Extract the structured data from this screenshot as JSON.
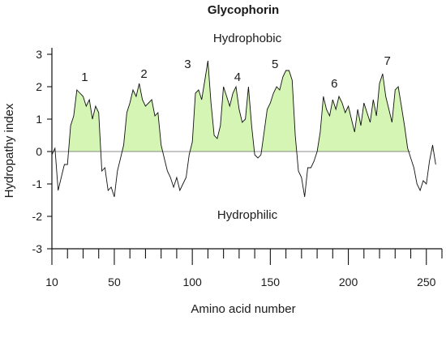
{
  "chart_data": {
    "type": "line",
    "title": "Glycophorin",
    "xlabel": "Amino acid number",
    "ylabel": "Hydropathy index",
    "xlim": [
      10,
      260
    ],
    "ylim": [
      -3.2,
      3.2
    ],
    "x_ticks": [
      10,
      50,
      100,
      150,
      200,
      250
    ],
    "y_ticks": [
      3,
      2,
      1,
      0,
      -1,
      -2,
      -3
    ],
    "x_minor_tick_step": 10,
    "grid": false,
    "legend": "none",
    "fill_positive_color": "#d4f5b3",
    "line_color": "#111111",
    "region_labels": {
      "above": "Hydrophobic",
      "below": "Hydrophilic"
    },
    "peak_labels": [
      {
        "text": "1",
        "x": 31,
        "y": 2.3
      },
      {
        "text": "2",
        "x": 69,
        "y": 2.4
      },
      {
        "text": "3",
        "x": 97,
        "y": 2.7
      },
      {
        "text": "4",
        "x": 129,
        "y": 2.3
      },
      {
        "text": "5",
        "x": 153,
        "y": 2.7
      },
      {
        "text": "6",
        "x": 191,
        "y": 2.1
      },
      {
        "text": "7",
        "x": 225,
        "y": 2.8
      }
    ],
    "series": [
      {
        "x": [
          10,
          12,
          14,
          16,
          18,
          20,
          22,
          24,
          26,
          28,
          30,
          32,
          34,
          36,
          38,
          40,
          42,
          44,
          46,
          48,
          50,
          52,
          54,
          56,
          58,
          60,
          62,
          64,
          66,
          68,
          70,
          72,
          74,
          76,
          78,
          80,
          82,
          84,
          86,
          88,
          90,
          92,
          94,
          96,
          98,
          100,
          102,
          104,
          106,
          108,
          110,
          112,
          114,
          116,
          118,
          120,
          122,
          124,
          126,
          128,
          130,
          132,
          134,
          136,
          138,
          140,
          142,
          144,
          146,
          148,
          150,
          152,
          154,
          156,
          158,
          160,
          162,
          164,
          166,
          168,
          170,
          172,
          174,
          176,
          178,
          180,
          182,
          184,
          186,
          188,
          190,
          192,
          194,
          196,
          198,
          200,
          202,
          204,
          206,
          208,
          210,
          212,
          214,
          216,
          218,
          220,
          222,
          224,
          226,
          228,
          230,
          232,
          234,
          236,
          238,
          240,
          242,
          244,
          246,
          248,
          250,
          252,
          254,
          256
        ],
        "y": [
          -0.1,
          0.1,
          -1.2,
          -0.8,
          -0.4,
          -0.4,
          0.8,
          1.1,
          1.9,
          1.8,
          1.7,
          1.4,
          1.6,
          1.0,
          1.4,
          1.2,
          -0.6,
          -0.5,
          -1.2,
          -1.1,
          -1.4,
          -0.6,
          -0.2,
          0.2,
          1.2,
          1.5,
          1.9,
          1.7,
          2.1,
          1.6,
          1.4,
          1.5,
          1.6,
          1.1,
          1.2,
          0.2,
          -0.2,
          -0.6,
          -0.8,
          -1.1,
          -0.8,
          -1.2,
          -1.0,
          -0.8,
          -0.1,
          0.3,
          1.8,
          1.9,
          1.6,
          2.2,
          2.8,
          1.5,
          0.5,
          0.4,
          0.8,
          2.0,
          1.7,
          1.4,
          1.8,
          2.0,
          1.3,
          0.9,
          1.0,
          2.0,
          0.8,
          -0.1,
          -0.2,
          -0.1,
          0.6,
          1.3,
          1.5,
          1.8,
          2.0,
          1.9,
          2.3,
          2.5,
          2.5,
          2.2,
          0.5,
          -0.6,
          -0.8,
          -1.4,
          -0.5,
          -0.5,
          -0.3,
          0.0,
          0.6,
          1.7,
          1.3,
          1.1,
          1.6,
          1.3,
          1.7,
          1.5,
          1.2,
          1.4,
          1.0,
          0.6,
          1.3,
          0.8,
          1.5,
          1.2,
          0.9,
          1.6,
          1.1,
          2.1,
          2.4,
          1.7,
          1.3,
          0.9,
          1.9,
          2.0,
          1.4,
          0.8,
          0.1,
          -0.2,
          -0.5,
          -1.0,
          -1.2,
          -0.9,
          -1.0,
          -0.3,
          0.2,
          -0.4
        ]
      }
    ]
  }
}
